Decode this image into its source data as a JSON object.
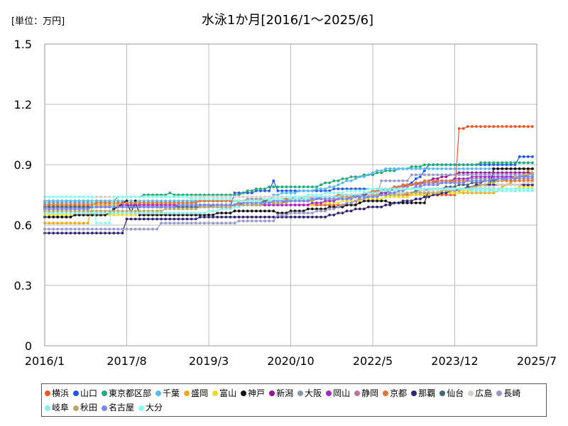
{
  "chart_data": {
    "type": "line",
    "title": "水泳1か月[2016/1～2025/6]",
    "unit_label": "[単位：万円]",
    "y_ticks": [
      "0",
      "0.3",
      "0.6",
      "0.9",
      "1.2",
      "1.5"
    ],
    "x_ticks": [
      "2016/1",
      "2017/8",
      "2019/3",
      "2020/10",
      "2022/5",
      "2023/12",
      "2025/7"
    ],
    "ylim": [
      0,
      1.5
    ],
    "x_start": "2016/1",
    "x_end": "2025/7",
    "grid": true,
    "legend_position": "bottom",
    "series": [
      {
        "name": "横浜",
        "color": "#ee5522",
        "points": [
          [
            "2016/1",
            0.7
          ],
          [
            "2022/1",
            0.7
          ],
          [
            "2022/2",
            0.75
          ],
          [
            "2024/1",
            0.75
          ],
          [
            "2024/1",
            1.08
          ],
          [
            "2024/5",
            1.09
          ],
          [
            "2025/6",
            1.09
          ]
        ]
      },
      {
        "name": "山口",
        "color": "#2255ee",
        "points": [
          [
            "2016/1",
            0.69
          ],
          [
            "2019/9",
            0.69
          ],
          [
            "2019/9",
            0.76
          ],
          [
            "2020/6",
            0.77
          ],
          [
            "2020/6",
            0.82
          ],
          [
            "2020/7",
            0.77
          ],
          [
            "2022/9",
            0.78
          ],
          [
            "2023/1",
            0.8
          ],
          [
            "2023/4",
            0.84
          ],
          [
            "2023/6",
            0.9
          ],
          [
            "2025/3",
            0.9
          ],
          [
            "2025/3",
            0.94
          ],
          [
            "2025/6",
            0.94
          ]
        ]
      },
      {
        "name": "東京都区部",
        "color": "#22aa77",
        "points": [
          [
            "2016/1",
            0.72
          ],
          [
            "2017/6",
            0.72
          ],
          [
            "2017/6",
            0.74
          ],
          [
            "2018/6",
            0.75
          ],
          [
            "2018/6",
            0.76
          ],
          [
            "2018/7",
            0.75
          ],
          [
            "2019/10",
            0.75
          ],
          [
            "2020/2",
            0.78
          ],
          [
            "2020/8",
            0.79
          ],
          [
            "2021/4",
            0.79
          ],
          [
            "2021/8",
            0.82
          ],
          [
            "2022/1",
            0.84
          ],
          [
            "2022/5",
            0.85
          ],
          [
            "2022/9",
            0.87
          ],
          [
            "2023/3",
            0.89
          ],
          [
            "2023/6",
            0.9
          ],
          [
            "2025/6",
            0.91
          ]
        ]
      },
      {
        "name": "千葉",
        "color": "#55bbee",
        "points": [
          [
            "2016/1",
            0.72
          ],
          [
            "2020/6",
            0.72
          ],
          [
            "2020/6",
            0.75
          ],
          [
            "2021/6",
            0.78
          ],
          [
            "2022/4",
            0.85
          ],
          [
            "2022/8",
            0.88
          ],
          [
            "2025/6",
            0.88
          ]
        ]
      },
      {
        "name": "盛岡",
        "color": "#eeaa22",
        "points": [
          [
            "2016/1",
            0.61
          ],
          [
            "2016/12",
            0.61
          ],
          [
            "2016/12",
            0.7
          ],
          [
            "2019/10",
            0.7
          ],
          [
            "2019/10",
            0.72
          ],
          [
            "2023/6",
            0.76
          ],
          [
            "2024/9",
            0.76
          ],
          [
            "2025/6",
            0.88
          ]
        ]
      },
      {
        "name": "富山",
        "color": "#eedd22",
        "points": [
          [
            "2016/1",
            0.65
          ],
          [
            "2018/4",
            0.65
          ],
          [
            "2018/4",
            0.7
          ],
          [
            "2021/1",
            0.7
          ],
          [
            "2023/4",
            0.75
          ],
          [
            "2025/6",
            0.79
          ]
        ]
      },
      {
        "name": "神戸",
        "color": "#111111",
        "points": [
          [
            "2016/1",
            0.64
          ],
          [
            "2017/3",
            0.65
          ],
          [
            "2017/8",
            0.72
          ],
          [
            "2017/9",
            0.66
          ],
          [
            "2017/10",
            0.72
          ],
          [
            "2017/11",
            0.65
          ],
          [
            "2019/3",
            0.65
          ],
          [
            "2019/10",
            0.67
          ],
          [
            "2020/6",
            0.67
          ],
          [
            "2020/7",
            0.66
          ],
          [
            "2022/1",
            0.7
          ],
          [
            "2022/3",
            0.72
          ],
          [
            "2023/1",
            0.71
          ],
          [
            "2023/6",
            0.71
          ],
          [
            "2023/6",
            0.78
          ],
          [
            "2024/9",
            0.78
          ],
          [
            "2024/9",
            0.88
          ],
          [
            "2025/6",
            0.88
          ]
        ]
      },
      {
        "name": "新潟",
        "color": "#991199",
        "points": [
          [
            "2016/1",
            0.68
          ],
          [
            "2019/6",
            0.7
          ],
          [
            "2021/1",
            0.72
          ],
          [
            "2022/6",
            0.75
          ],
          [
            "2023/1",
            0.8
          ],
          [
            "2024/2",
            0.86
          ],
          [
            "2025/6",
            0.86
          ]
        ]
      },
      {
        "name": "大阪",
        "color": "#8899aa",
        "points": [
          [
            "2016/1",
            0.71
          ],
          [
            "2018/6",
            0.71
          ],
          [
            "2020/6",
            0.73
          ],
          [
            "2022/1",
            0.75
          ],
          [
            "2023/6",
            0.82
          ],
          [
            "2025/6",
            0.84
          ]
        ]
      },
      {
        "name": "岡山",
        "color": "#aa22cc",
        "points": [
          [
            "2016/1",
            0.69
          ],
          [
            "2019/1",
            0.7
          ],
          [
            "2021/1",
            0.7
          ],
          [
            "2022/1",
            0.74
          ],
          [
            "2023/1",
            0.8
          ],
          [
            "2024/6",
            0.84
          ],
          [
            "2025/6",
            0.84
          ]
        ]
      },
      {
        "name": "静岡",
        "color": "#bb7799",
        "points": [
          [
            "2016/1",
            0.7
          ],
          [
            "2020/1",
            0.72
          ],
          [
            "2022/1",
            0.75
          ],
          [
            "2023/6",
            0.81
          ],
          [
            "2025/6",
            0.83
          ]
        ]
      },
      {
        "name": "京都",
        "color": "#dd7733",
        "points": [
          [
            "2016/1",
            0.7
          ],
          [
            "2020/1",
            0.72
          ],
          [
            "2022/1",
            0.75
          ],
          [
            "2023/6",
            0.82
          ],
          [
            "2025/6",
            0.82
          ]
        ]
      },
      {
        "name": "那覇",
        "color": "#332277",
        "points": [
          [
            "2016/1",
            0.56
          ],
          [
            "2017/8",
            0.56
          ],
          [
            "2017/8",
            0.63
          ],
          [
            "2020/6",
            0.64
          ],
          [
            "2021/6",
            0.64
          ],
          [
            "2022/1",
            0.68
          ],
          [
            "2022/6",
            0.69
          ],
          [
            "2023/1",
            0.72
          ],
          [
            "2024/6",
            0.8
          ],
          [
            "2025/6",
            0.8
          ]
        ]
      },
      {
        "name": "仙台",
        "color": "#446677",
        "points": [
          [
            "2016/1",
            0.69
          ],
          [
            "2019/1",
            0.69
          ],
          [
            "2021/1",
            0.73
          ],
          [
            "2023/1",
            0.76
          ],
          [
            "2025/6",
            0.85
          ]
        ]
      },
      {
        "name": "広島",
        "color": "#ddcccc",
        "points": [
          [
            "2016/1",
            0.74
          ],
          [
            "2018/1",
            0.74
          ],
          [
            "2020/1",
            0.74
          ],
          [
            "2022/1",
            0.74
          ],
          [
            "2023/1",
            0.76
          ],
          [
            "2025/6",
            0.81
          ]
        ]
      },
      {
        "name": "長崎",
        "color": "#9999cc",
        "points": [
          [
            "2016/1",
            0.58
          ],
          [
            "2018/3",
            0.58
          ],
          [
            "2018/4",
            0.61
          ],
          [
            "2019/10",
            0.61
          ],
          [
            "2019/10",
            0.62
          ],
          [
            "2020/6",
            0.62
          ],
          [
            "2020/7",
            0.65
          ],
          [
            "2021/6",
            0.67
          ],
          [
            "2022/1",
            0.72
          ],
          [
            "2022/6",
            0.75
          ],
          [
            "2022/7",
            0.82
          ],
          [
            "2023/2",
            0.82
          ],
          [
            "2023/2",
            0.85
          ],
          [
            "2025/6",
            0.85
          ]
        ]
      },
      {
        "name": "岐阜",
        "color": "#88eeee",
        "points": [
          [
            "2016/1",
            0.66
          ],
          [
            "2019/1",
            0.66
          ],
          [
            "2020/6",
            0.72
          ],
          [
            "2022/1",
            0.75
          ],
          [
            "2023/1",
            0.78
          ],
          [
            "2025/6",
            0.77
          ]
        ]
      },
      {
        "name": "秋田",
        "color": "#bbaa66",
        "points": [
          [
            "2016/1",
            0.67
          ],
          [
            "2018/1",
            0.67
          ],
          [
            "2020/1",
            0.7
          ],
          [
            "2022/1",
            0.74
          ],
          [
            "2024/1",
            0.77
          ],
          [
            "2025/6",
            0.86
          ]
        ]
      },
      {
        "name": "名古屋",
        "color": "#7788ee",
        "points": [
          [
            "2016/1",
            0.68
          ],
          [
            "2019/6",
            0.7
          ],
          [
            "2020/10",
            0.72
          ],
          [
            "2022/6",
            0.74
          ],
          [
            "2023/6",
            0.8
          ],
          [
            "2025/6",
            0.84
          ]
        ]
      },
      {
        "name": "大分",
        "color": "#88ffee",
        "points": [
          [
            "2016/1",
            0.74
          ],
          [
            "2017/1",
            0.74
          ],
          [
            "2017/1",
            0.61
          ],
          [
            "2017/4",
            0.61
          ],
          [
            "2017/5",
            0.74
          ],
          [
            "2018/6",
            0.74
          ],
          [
            "2020/1",
            0.72
          ],
          [
            "2022/6",
            0.78
          ],
          [
            "2023/6",
            0.78
          ],
          [
            "2025/6",
            0.78
          ]
        ]
      }
    ]
  }
}
